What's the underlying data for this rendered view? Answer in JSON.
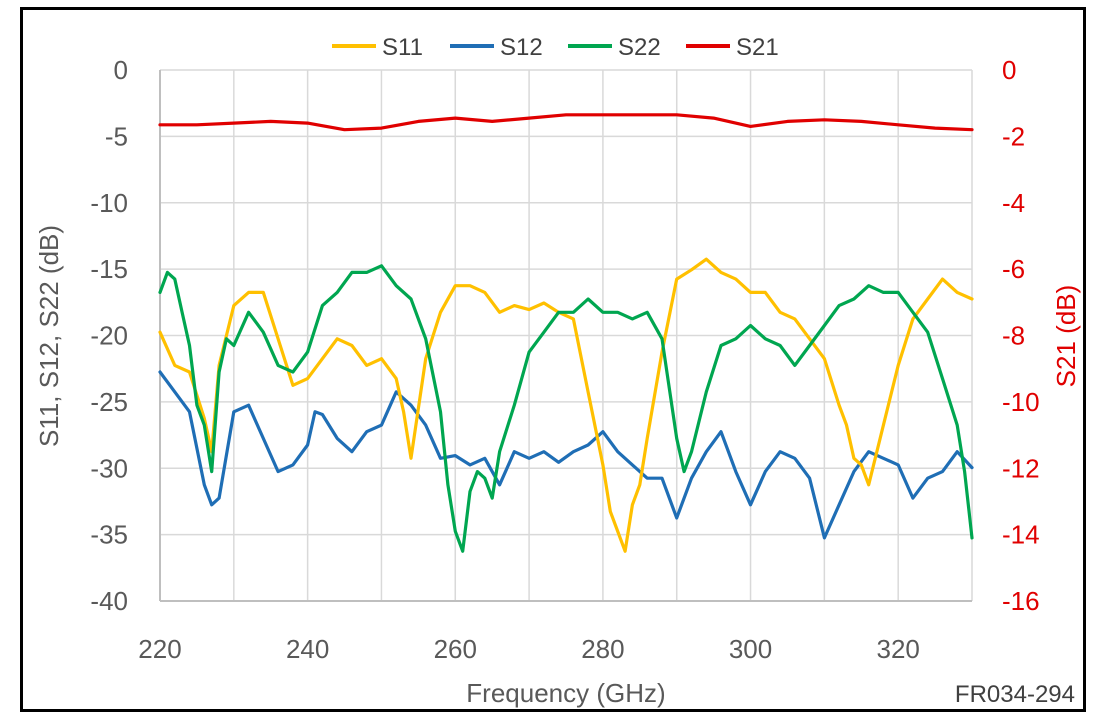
{
  "chart_data": {
    "type": "line",
    "xlabel": "Frequency (GHz)",
    "ylabel": "S11, S12, S22 (dB)",
    "y2label": "S21 (dB)",
    "xlim": [
      220,
      330
    ],
    "ylim": [
      -40,
      0
    ],
    "y2lim": [
      -16,
      0
    ],
    "x_ticks": [
      220,
      240,
      260,
      280,
      300,
      320
    ],
    "y_ticks": [
      0,
      -5,
      -10,
      -15,
      -20,
      -25,
      -30,
      -35,
      -40
    ],
    "y2_ticks": [
      0,
      -2,
      -4,
      -6,
      -8,
      -10,
      -12,
      -14,
      -16
    ],
    "grid": true,
    "legend_position": "top-center",
    "annotation": "FR034-294",
    "colors": {
      "tick_left": "#595959",
      "tick_right": "#e00000",
      "grid": "#d9d9d9"
    },
    "series": [
      {
        "name": "S11",
        "axis": "left",
        "color": "#FFC000",
        "x": [
          220,
          222,
          224,
          226,
          227,
          228,
          230,
          232,
          234,
          236,
          238,
          240,
          242,
          244,
          246,
          248,
          250,
          252,
          253,
          254,
          256,
          258,
          260,
          262,
          264,
          266,
          268,
          270,
          272,
          274,
          276,
          278,
          280,
          281,
          282,
          283,
          284,
          285,
          286,
          288,
          290,
          292,
          294,
          296,
          298,
          300,
          302,
          304,
          306,
          308,
          310,
          312,
          313,
          314,
          315,
          316,
          318,
          320,
          322,
          324,
          326,
          328,
          330
        ],
        "y": [
          -20,
          -22,
          -23,
          -26,
          -29,
          -22,
          -18,
          -16.5,
          -17,
          -20,
          -24,
          -23,
          -22,
          -20,
          -21,
          -22,
          -22,
          -23,
          -26,
          -29,
          -22,
          -18,
          -16.5,
          -16,
          -17,
          -18,
          -18,
          -17.8,
          -17.8,
          -18,
          -19,
          -24,
          -30,
          -33,
          -35,
          -36,
          -33,
          -31,
          -28,
          -21,
          -16,
          -14.8,
          -14.5,
          -15,
          -16,
          -16.5,
          -17,
          -18,
          -19,
          -20,
          -22,
          -25,
          -27,
          -29,
          -30,
          -31,
          -27,
          -22,
          -19,
          -17,
          -16,
          -16.5,
          -17.5
        ]
      },
      {
        "name": "S12",
        "axis": "left",
        "color": "#1F6EB5",
        "x": [
          220,
          222,
          224,
          226,
          227,
          228,
          230,
          232,
          234,
          236,
          238,
          240,
          241,
          242,
          244,
          246,
          248,
          250,
          252,
          254,
          256,
          258,
          260,
          262,
          264,
          266,
          268,
          270,
          272,
          274,
          276,
          278,
          280,
          282,
          284,
          286,
          288,
          290,
          292,
          294,
          296,
          298,
          300,
          302,
          304,
          306,
          308,
          310,
          312,
          314,
          316,
          318,
          320,
          322,
          324,
          326,
          328,
          330
        ],
        "y": [
          -23,
          -24,
          -26,
          -31,
          -33,
          -32,
          -26,
          -25,
          -28,
          -30,
          -30,
          -28,
          -26,
          -25.7,
          -28,
          -28.5,
          -27.5,
          -26.5,
          -24.5,
          -25,
          -27,
          -29,
          -29.3,
          -29.5,
          -29.5,
          -31,
          -29,
          -29,
          -29,
          -29.3,
          -29,
          -28,
          -27.5,
          -28.5,
          -30,
          -30.5,
          -31,
          -33.5,
          -31,
          -28.5,
          -27.5,
          -30,
          -33,
          -30,
          -29,
          -29,
          -31,
          -35,
          -33,
          -30,
          -29,
          -29,
          -30,
          -32,
          -31,
          -30,
          -29,
          -29.7
        ]
      },
      {
        "name": "S22",
        "axis": "left",
        "color": "#00A650",
        "x": [
          220,
          221,
          222,
          223,
          224,
          225,
          226,
          227,
          228,
          229,
          230,
          232,
          234,
          236,
          238,
          240,
          242,
          244,
          246,
          248,
          250,
          252,
          254,
          256,
          258,
          259,
          260,
          261,
          262,
          263,
          264,
          265,
          266,
          268,
          270,
          272,
          274,
          276,
          278,
          280,
          282,
          284,
          286,
          288,
          290,
          291,
          292,
          294,
          296,
          298,
          300,
          302,
          304,
          306,
          308,
          310,
          312,
          314,
          316,
          318,
          320,
          322,
          324,
          326,
          328,
          329,
          330
        ],
        "y": [
          -17,
          -15,
          -16,
          -18,
          -21,
          -25,
          -27,
          -30,
          -23,
          -20,
          -21,
          -18,
          -20,
          -22,
          -23,
          -21,
          -18,
          -16.5,
          -15.5,
          -15,
          -15,
          -16,
          -17.5,
          -20,
          -26,
          -31,
          -35,
          -36,
          -32,
          -30,
          -31,
          -32,
          -29,
          -25,
          -21.5,
          -19.5,
          -18.5,
          -18,
          -17.5,
          -18,
          -18.5,
          -18.5,
          -18.5,
          -20,
          -28,
          -30,
          -29,
          -24,
          -21,
          -20,
          -19.5,
          -20,
          -21,
          -22,
          -21,
          -19,
          -18,
          -17,
          -16.5,
          -16.5,
          -17,
          -18,
          -20,
          -23,
          -27,
          -30,
          -35.5
        ]
      },
      {
        "name": "S21",
        "axis": "right",
        "color": "#E00000",
        "x": [
          220,
          225,
          230,
          235,
          240,
          245,
          250,
          255,
          260,
          265,
          270,
          275,
          280,
          285,
          290,
          295,
          300,
          305,
          310,
          315,
          320,
          325,
          330
        ],
        "y": [
          -1.65,
          -1.65,
          -1.6,
          -1.55,
          -1.6,
          -1.8,
          -1.75,
          -1.55,
          -1.45,
          -1.55,
          -1.45,
          -1.35,
          -1.35,
          -1.35,
          -1.35,
          -1.45,
          -1.7,
          -1.55,
          -1.5,
          -1.55,
          -1.65,
          -1.75,
          -1.8
        ]
      }
    ]
  }
}
